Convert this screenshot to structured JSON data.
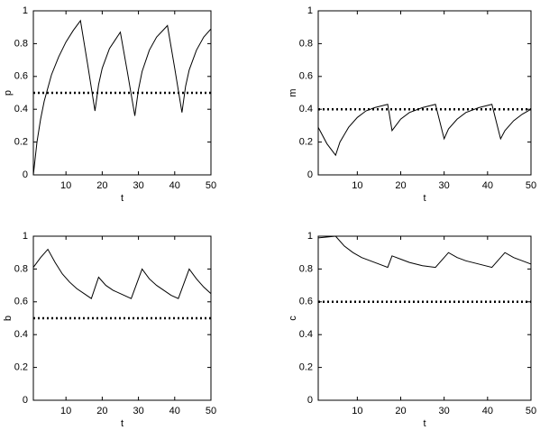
{
  "chart_data": [
    {
      "type": "line",
      "xlabel": "t",
      "ylabel": "p",
      "x": [
        1,
        2,
        3,
        4,
        6,
        8,
        10,
        12,
        14,
        16,
        18,
        19,
        20,
        22,
        25,
        27,
        29,
        30,
        31,
        33,
        35,
        38,
        40,
        42,
        43,
        44,
        46,
        48,
        50
      ],
      "series": [
        {
          "color": "#000000",
          "values": [
            0,
            0.2,
            0.34,
            0.45,
            0.61,
            0.72,
            0.81,
            0.88,
            0.94,
            0.67,
            0.39,
            0.55,
            0.65,
            0.77,
            0.87,
            0.62,
            0.36,
            0.52,
            0.63,
            0.76,
            0.84,
            0.91,
            0.65,
            0.38,
            0.54,
            0.64,
            0.76,
            0.84,
            0.89
          ]
        }
      ],
      "hline": 0.5,
      "hline_style": "dotted",
      "xlim": [
        1,
        50
      ],
      "ylim": [
        0,
        1
      ],
      "xticks": [
        10,
        20,
        30,
        40,
        50
      ],
      "yticks": [
        0,
        0.2,
        0.4,
        0.6,
        0.8,
        1
      ]
    },
    {
      "type": "line",
      "xlabel": "t",
      "ylabel": "m",
      "x": [
        1,
        3,
        5,
        6,
        8,
        10,
        12,
        14,
        17,
        18,
        20,
        22,
        25,
        28,
        30,
        31,
        33,
        35,
        38,
        41,
        43,
        44,
        46,
        48,
        50
      ],
      "series": [
        {
          "color": "#000000",
          "values": [
            0.29,
            0.19,
            0.12,
            0.2,
            0.29,
            0.35,
            0.39,
            0.41,
            0.43,
            0.27,
            0.34,
            0.38,
            0.41,
            0.43,
            0.22,
            0.28,
            0.34,
            0.38,
            0.41,
            0.43,
            0.22,
            0.27,
            0.33,
            0.37,
            0.4
          ]
        }
      ],
      "hline": 0.4,
      "hline_style": "dotted",
      "xlim": [
        1,
        50
      ],
      "ylim": [
        0,
        1
      ],
      "xticks": [
        10,
        20,
        30,
        40,
        50
      ],
      "yticks": [
        0,
        0.2,
        0.4,
        0.6,
        0.8,
        1
      ]
    },
    {
      "type": "line",
      "xlabel": "t",
      "ylabel": "b",
      "x": [
        1,
        3,
        5,
        7,
        9,
        11,
        13,
        15,
        17,
        19,
        21,
        23,
        25,
        28,
        31,
        33,
        35,
        37,
        39,
        41,
        44,
        46,
        48,
        50
      ],
      "series": [
        {
          "color": "#000000",
          "values": [
            0.81,
            0.87,
            0.92,
            0.84,
            0.77,
            0.72,
            0.68,
            0.65,
            0.62,
            0.75,
            0.7,
            0.67,
            0.65,
            0.62,
            0.8,
            0.74,
            0.7,
            0.67,
            0.64,
            0.62,
            0.8,
            0.74,
            0.69,
            0.65
          ]
        }
      ],
      "hline": 0.5,
      "hline_style": "dotted",
      "xlim": [
        1,
        50
      ],
      "ylim": [
        0,
        1
      ],
      "xticks": [
        10,
        20,
        30,
        40,
        50
      ],
      "yticks": [
        0,
        0.2,
        0.4,
        0.6,
        0.8,
        1
      ]
    },
    {
      "type": "line",
      "xlabel": "t",
      "ylabel": "c",
      "x": [
        1,
        5,
        7,
        9,
        11,
        13,
        15,
        17,
        18,
        20,
        22,
        25,
        28,
        31,
        33,
        35,
        38,
        41,
        44,
        46,
        48,
        50
      ],
      "series": [
        {
          "color": "#000000",
          "values": [
            0.99,
            1,
            0.94,
            0.9,
            0.87,
            0.85,
            0.83,
            0.81,
            0.88,
            0.86,
            0.84,
            0.82,
            0.81,
            0.9,
            0.87,
            0.85,
            0.83,
            0.81,
            0.9,
            0.87,
            0.85,
            0.83
          ]
        }
      ],
      "hline": 0.6,
      "hline_style": "dotted",
      "xlim": [
        1,
        50
      ],
      "ylim": [
        0,
        1
      ],
      "xticks": [
        10,
        20,
        30,
        40,
        50
      ],
      "yticks": [
        0,
        0.2,
        0.4,
        0.6,
        0.8,
        1
      ]
    }
  ]
}
